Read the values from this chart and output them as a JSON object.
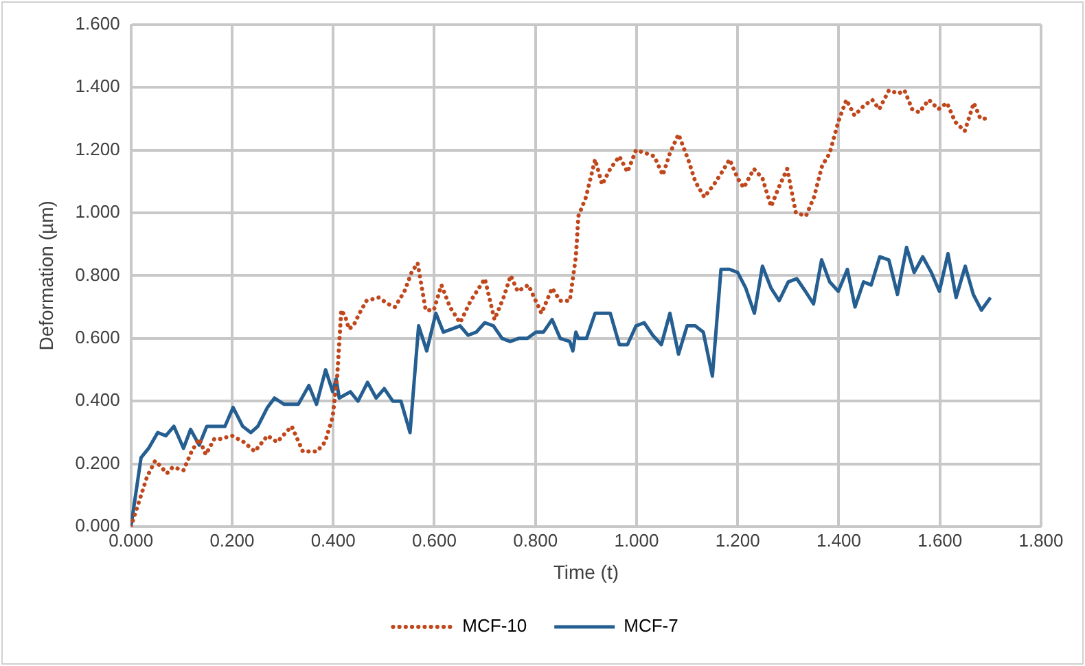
{
  "chart_data": {
    "type": "line",
    "xlabel": "Time (t)",
    "ylabel": "Deformation (µm)",
    "xlim": [
      0,
      1.8
    ],
    "ylim": [
      0,
      1.6
    ],
    "xticks": [
      {
        "value": 0,
        "label": "0.000"
      },
      {
        "value": 0.2,
        "label": "0.200"
      },
      {
        "value": 0.4,
        "label": "0.400"
      },
      {
        "value": 0.6,
        "label": "0.600"
      },
      {
        "value": 0.8,
        "label": "0.800"
      },
      {
        "value": 1,
        "label": "1.000"
      },
      {
        "value": 1.2,
        "label": "1.200"
      },
      {
        "value": 1.4,
        "label": "1.400"
      },
      {
        "value": 1.6,
        "label": "1.600"
      },
      {
        "value": 1.8,
        "label": "1.800"
      }
    ],
    "yticks": [
      {
        "value": 0,
        "label": "0.000"
      },
      {
        "value": 0.2,
        "label": "0.200"
      },
      {
        "value": 0.4,
        "label": "0.400"
      },
      {
        "value": 0.6,
        "label": "0.600"
      },
      {
        "value": 0.8,
        "label": "0.800"
      },
      {
        "value": 1,
        "label": "1.000"
      },
      {
        "value": 1.2,
        "label": "1.200"
      },
      {
        "value": 1.4,
        "label": "1.400"
      },
      {
        "value": 1.6,
        "label": "1.600"
      }
    ],
    "grid": true,
    "legend": "bottom",
    "marker": "none",
    "series": [
      {
        "name": "MCF-10",
        "color": "#c0471c",
        "line_style": "dotted",
        "x": [
          0,
          0.018,
          0.032,
          0.048,
          0.06,
          0.071,
          0.083,
          0.104,
          0.12,
          0.135,
          0.148,
          0.165,
          0.178,
          0.2,
          0.223,
          0.245,
          0.27,
          0.289,
          0.318,
          0.34,
          0.368,
          0.384,
          0.399,
          0.408,
          0.416,
          0.424,
          0.431,
          0.44,
          0.452,
          0.466,
          0.49,
          0.508,
          0.522,
          0.541,
          0.555,
          0.567,
          0.583,
          0.599,
          0.614,
          0.631,
          0.651,
          0.672,
          0.7,
          0.719,
          0.737,
          0.751,
          0.765,
          0.786,
          0.812,
          0.833,
          0.849,
          0.868,
          0.88,
          0.885,
          0.9,
          0.918,
          0.932,
          0.948,
          0.966,
          0.982,
          0.999,
          1.018,
          1.035,
          1.052,
          1.066,
          1.083,
          1.102,
          1.116,
          1.134,
          1.153,
          1.169,
          1.184,
          1.2,
          1.212,
          1.232,
          1.249,
          1.266,
          1.281,
          1.298,
          1.315,
          1.335,
          1.351,
          1.367,
          1.382,
          1.399,
          1.415,
          1.431,
          1.449,
          1.466,
          1.48,
          1.499,
          1.518,
          1.53,
          1.545,
          1.559,
          1.578,
          1.597,
          1.614,
          1.63,
          1.649,
          1.667,
          1.68,
          1.695
        ],
        "values": [
          0,
          0.09,
          0.16,
          0.21,
          0.19,
          0.17,
          0.19,
          0.18,
          0.24,
          0.28,
          0.23,
          0.28,
          0.28,
          0.29,
          0.27,
          0.24,
          0.29,
          0.27,
          0.32,
          0.24,
          0.24,
          0.27,
          0.35,
          0.48,
          0.69,
          0.67,
          0.63,
          0.64,
          0.68,
          0.72,
          0.73,
          0.71,
          0.7,
          0.75,
          0.81,
          0.84,
          0.69,
          0.69,
          0.77,
          0.7,
          0.65,
          0.72,
          0.79,
          0.66,
          0.73,
          0.8,
          0.75,
          0.77,
          0.68,
          0.76,
          0.72,
          0.72,
          0.86,
          0.99,
          1.05,
          1.17,
          1.09,
          1.14,
          1.18,
          1.13,
          1.2,
          1.19,
          1.18,
          1.12,
          1.19,
          1.25,
          1.17,
          1.1,
          1.05,
          1.09,
          1.13,
          1.17,
          1.11,
          1.08,
          1.14,
          1.11,
          1.02,
          1.08,
          1.14,
          1.0,
          0.99,
          1.05,
          1.15,
          1.19,
          1.29,
          1.36,
          1.31,
          1.34,
          1.36,
          1.33,
          1.39,
          1.38,
          1.39,
          1.33,
          1.32,
          1.36,
          1.33,
          1.35,
          1.29,
          1.26,
          1.35,
          1.3,
          1.3
        ]
      },
      {
        "name": "MCF-7",
        "color": "#255e91",
        "line_style": "solid",
        "x": [
          0,
          0.02,
          0.035,
          0.053,
          0.069,
          0.085,
          0.104,
          0.118,
          0.135,
          0.15,
          0.186,
          0.202,
          0.221,
          0.237,
          0.251,
          0.27,
          0.284,
          0.303,
          0.331,
          0.352,
          0.367,
          0.385,
          0.399,
          0.406,
          0.412,
          0.434,
          0.449,
          0.468,
          0.485,
          0.501,
          0.518,
          0.534,
          0.552,
          0.569,
          0.585,
          0.603,
          0.618,
          0.635,
          0.651,
          0.667,
          0.683,
          0.7,
          0.717,
          0.734,
          0.75,
          0.767,
          0.784,
          0.801,
          0.816,
          0.833,
          0.849,
          0.868,
          0.874,
          0.88,
          0.885,
          0.901,
          0.918,
          0.948,
          0.966,
          0.982,
          0.999,
          1.015,
          1.032,
          1.049,
          1.066,
          1.083,
          1.1,
          1.116,
          1.132,
          1.15,
          1.167,
          1.184,
          1.2,
          1.216,
          1.233,
          1.249,
          1.266,
          1.282,
          1.3,
          1.317,
          1.334,
          1.35,
          1.366,
          1.382,
          1.399,
          1.417,
          1.432,
          1.449,
          1.464,
          1.481,
          1.499,
          1.516,
          1.534,
          1.549,
          1.566,
          1.583,
          1.599,
          1.616,
          1.632,
          1.65,
          1.666,
          1.682,
          1.7
        ],
        "values": [
          0,
          0.22,
          0.25,
          0.3,
          0.29,
          0.32,
          0.25,
          0.31,
          0.26,
          0.32,
          0.32,
          0.38,
          0.32,
          0.3,
          0.32,
          0.38,
          0.41,
          0.39,
          0.39,
          0.45,
          0.39,
          0.5,
          0.43,
          0.47,
          0.41,
          0.43,
          0.4,
          0.46,
          0.41,
          0.44,
          0.4,
          0.4,
          0.3,
          0.64,
          0.56,
          0.68,
          0.62,
          0.63,
          0.64,
          0.61,
          0.62,
          0.65,
          0.64,
          0.6,
          0.59,
          0.6,
          0.6,
          0.62,
          0.62,
          0.66,
          0.6,
          0.59,
          0.56,
          0.62,
          0.6,
          0.6,
          0.68,
          0.68,
          0.58,
          0.58,
          0.64,
          0.65,
          0.61,
          0.58,
          0.68,
          0.55,
          0.64,
          0.64,
          0.62,
          0.48,
          0.82,
          0.82,
          0.81,
          0.76,
          0.68,
          0.83,
          0.76,
          0.72,
          0.78,
          0.79,
          0.75,
          0.71,
          0.85,
          0.78,
          0.75,
          0.82,
          0.7,
          0.78,
          0.77,
          0.86,
          0.85,
          0.74,
          0.89,
          0.81,
          0.86,
          0.81,
          0.75,
          0.87,
          0.73,
          0.83,
          0.74,
          0.69,
          0.73
        ]
      }
    ]
  }
}
